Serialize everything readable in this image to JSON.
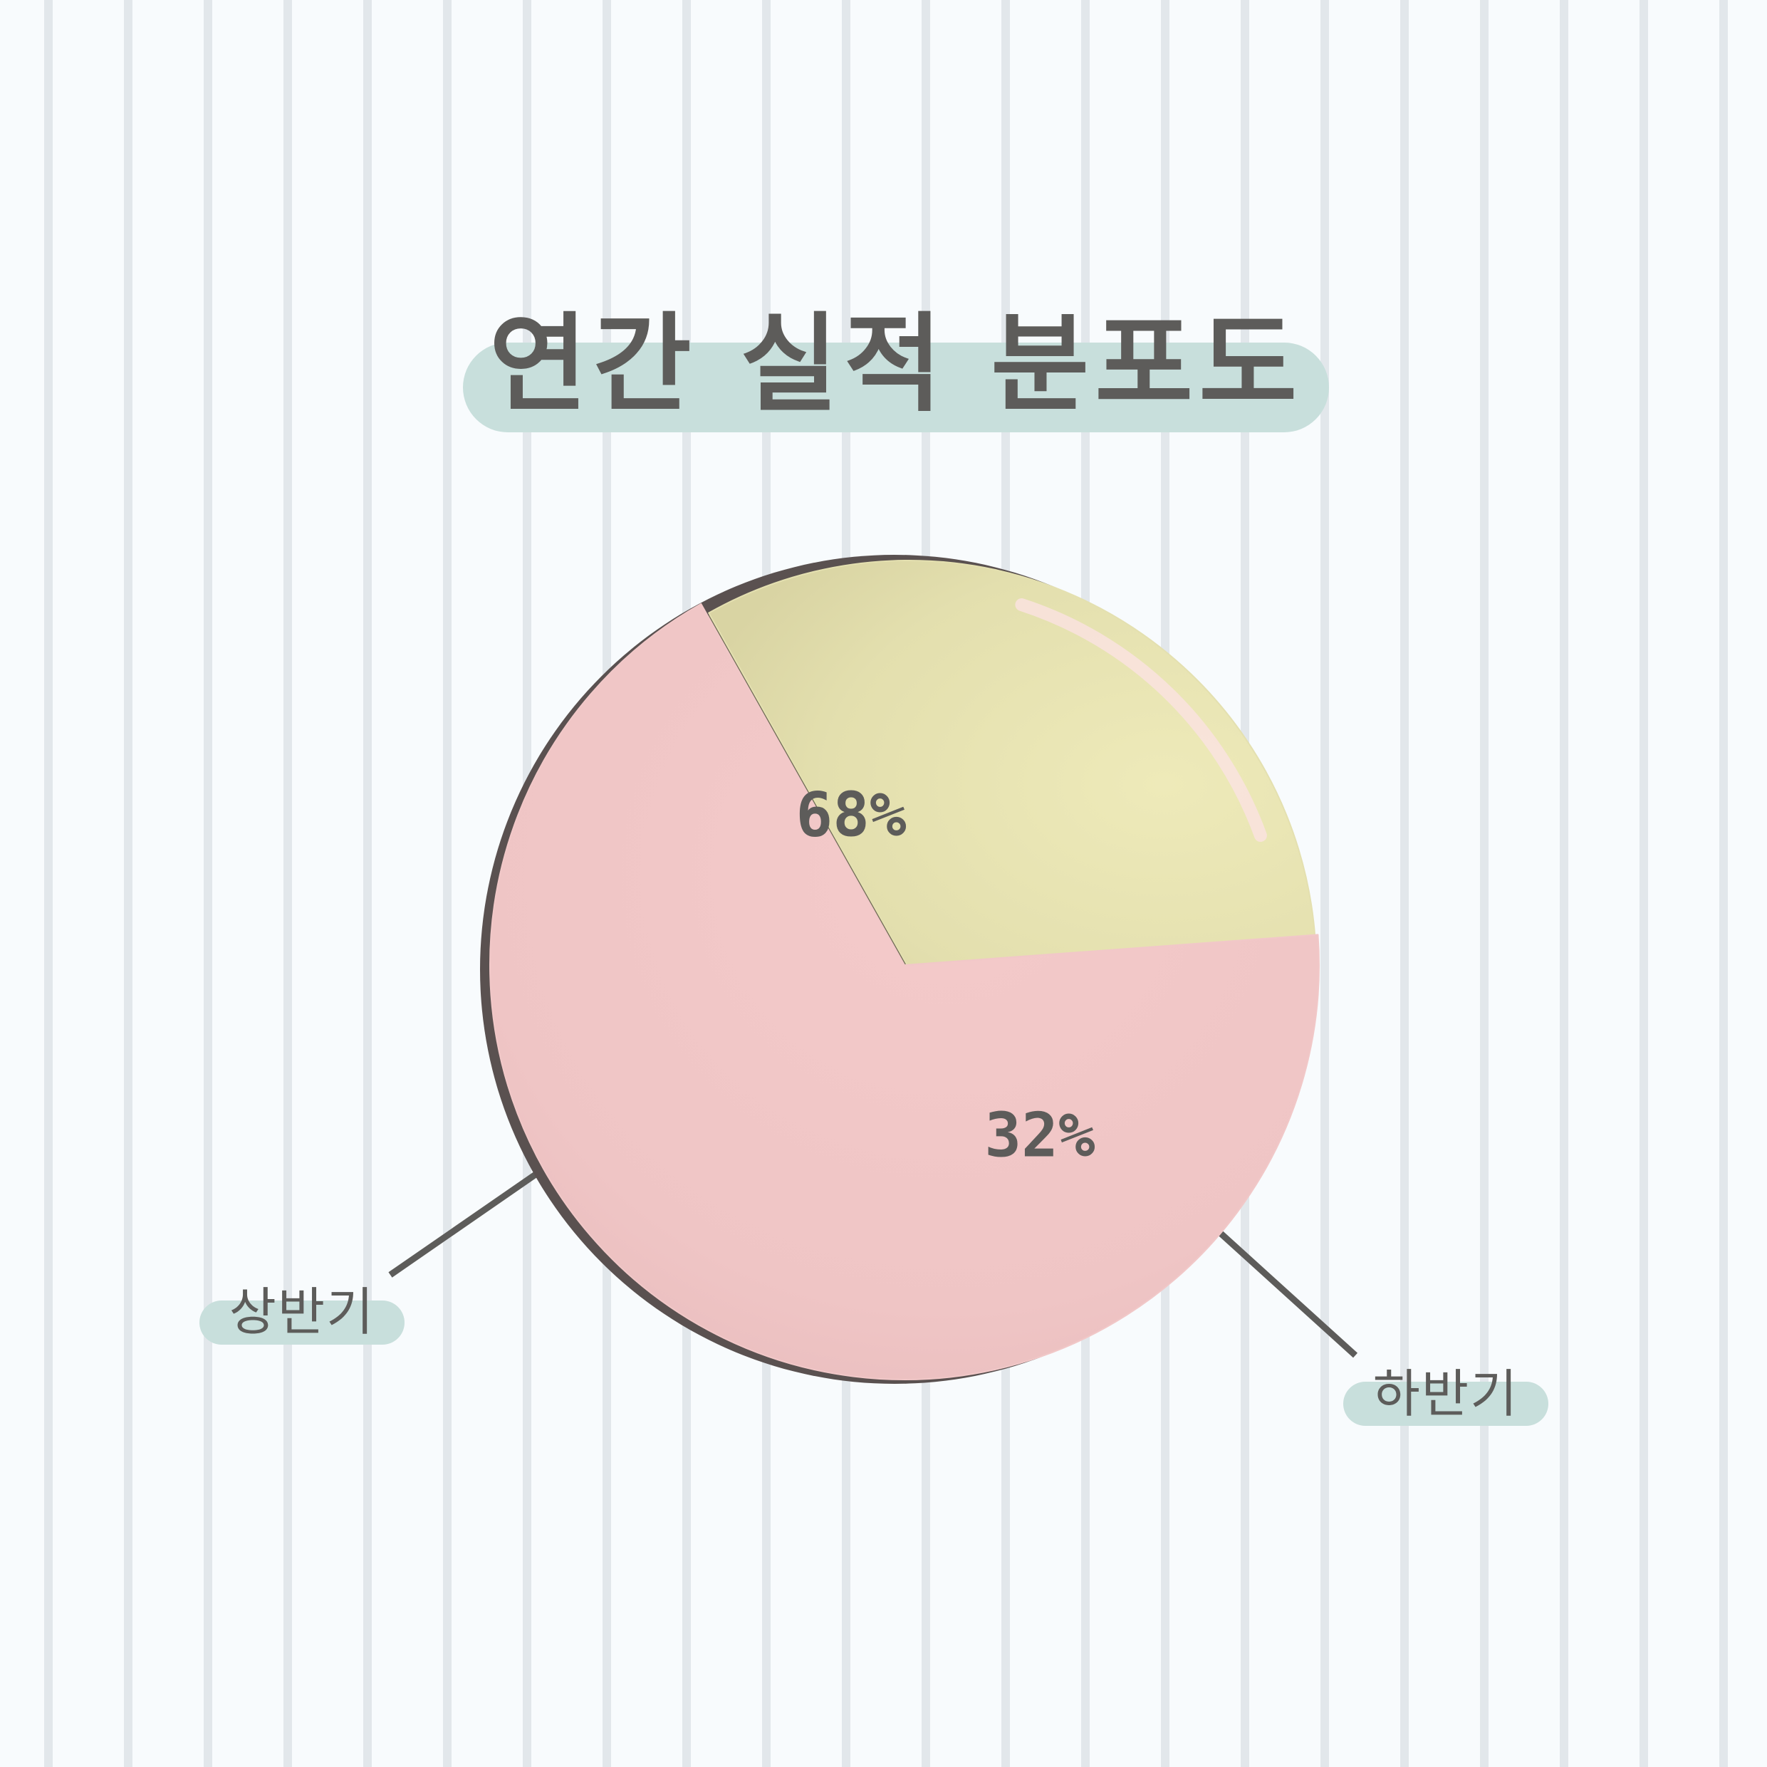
{
  "chart_data": {
    "type": "pie",
    "title": "연간 실적 분포도",
    "categories": [
      "상반기",
      "하반기"
    ],
    "values": [
      68,
      32
    ],
    "data_labels": [
      "68%",
      "32%"
    ],
    "colors": [
      "#f1c8c8",
      "#e4e0b0"
    ],
    "legend": "callouts"
  },
  "colors": {
    "background": "#f8fbfd",
    "stripe": "#e2e7eb",
    "pill": "#c8dfdc",
    "text": "#5d5c5a",
    "shadow": "#5a5150"
  }
}
